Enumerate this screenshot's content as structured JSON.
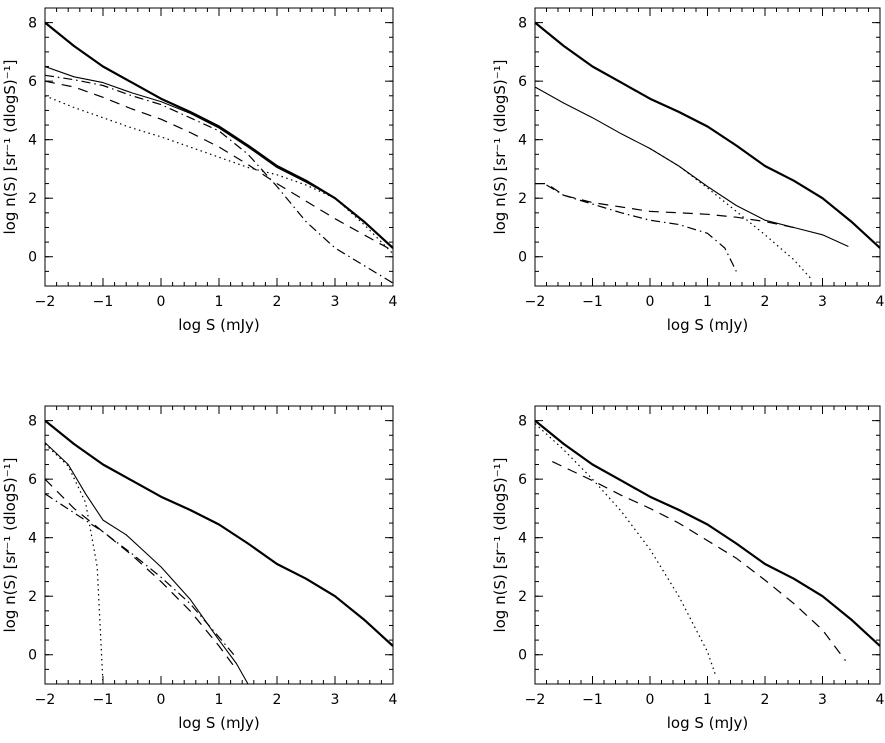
{
  "chart_data": [
    {
      "type": "line",
      "xlabel": "log S (mJy)",
      "ylabel": "log n(S) [sr⁻¹ (dlogS)⁻¹]",
      "xlim": [
        -2,
        4
      ],
      "ylim": [
        -1,
        8.5
      ],
      "xticks": [
        -2,
        -1,
        0,
        1,
        2,
        3,
        4
      ],
      "yticks": [
        0,
        2,
        4,
        6,
        8
      ],
      "grid": false,
      "series": [
        {
          "style": "solid-thick",
          "x": [
            -2,
            -1.5,
            -1,
            -0.5,
            0,
            0.5,
            1,
            1.5,
            2,
            2.5,
            3,
            3.5,
            4
          ],
          "y": [
            8.0,
            7.2,
            6.5,
            5.95,
            5.4,
            4.95,
            4.45,
            3.8,
            3.1,
            2.6,
            2.0,
            1.2,
            0.3
          ]
        },
        {
          "style": "solid-thin",
          "x": [
            -2,
            -1.5,
            -1,
            -0.5,
            0,
            0.5,
            1,
            1.5,
            2,
            2.5,
            3,
            3.5,
            4
          ],
          "y": [
            6.5,
            6.15,
            5.95,
            5.6,
            5.3,
            4.9,
            4.4,
            3.75,
            3.05,
            2.55,
            2.0,
            1.2,
            0.3
          ]
        },
        {
          "style": "dotted",
          "x": [
            -2,
            -1.5,
            -1,
            -0.5,
            0,
            0.5,
            1,
            1.5,
            2,
            2.5,
            3,
            3.5,
            4
          ],
          "y": [
            5.5,
            5.1,
            4.75,
            4.4,
            4.1,
            3.75,
            3.4,
            3.05,
            2.8,
            2.45,
            2.0,
            1.1,
            0.1
          ]
        },
        {
          "style": "dashed",
          "x": [
            -2,
            -1.5,
            -1,
            -0.5,
            0,
            0.5,
            1,
            1.5,
            2,
            2.5,
            3,
            3.5,
            4
          ],
          "y": [
            6.0,
            5.8,
            5.45,
            5.05,
            4.7,
            4.25,
            3.75,
            3.15,
            2.5,
            1.9,
            1.3,
            0.75,
            0.2
          ]
        },
        {
          "style": "dash-dot",
          "x": [
            -2,
            -1.5,
            -1,
            -0.5,
            0,
            0.5,
            1,
            1.5,
            2,
            2.5,
            3,
            3.5,
            4
          ],
          "y": [
            6.2,
            6.05,
            5.85,
            5.5,
            5.2,
            4.75,
            4.3,
            3.5,
            2.4,
            1.2,
            0.3,
            -0.3,
            -0.9
          ]
        }
      ]
    },
    {
      "type": "line",
      "xlabel": "log S (mJy)",
      "ylabel": "log n(S) [sr⁻¹ (dlogS)⁻¹]",
      "xlim": [
        -2,
        4
      ],
      "ylim": [
        -1,
        8.5
      ],
      "xticks": [
        -2,
        -1,
        0,
        1,
        2,
        3,
        4
      ],
      "yticks": [
        0,
        2,
        4,
        6,
        8
      ],
      "grid": false,
      "series": [
        {
          "style": "solid-thick",
          "x": [
            -2,
            -1.5,
            -1,
            -0.5,
            0,
            0.5,
            1,
            1.5,
            2,
            2.5,
            3,
            3.5,
            4
          ],
          "y": [
            8.0,
            7.2,
            6.5,
            5.95,
            5.4,
            4.95,
            4.45,
            3.8,
            3.1,
            2.6,
            2.0,
            1.2,
            0.3
          ]
        },
        {
          "style": "solid-thin",
          "x": [
            -2,
            -1.5,
            -1,
            -0.5,
            0,
            0.5,
            1,
            1.5,
            2,
            2.5,
            3,
            3.45
          ],
          "y": [
            5.8,
            5.25,
            4.75,
            4.2,
            3.7,
            3.1,
            2.4,
            1.75,
            1.25,
            1.0,
            0.75,
            0.35
          ]
        },
        {
          "style": "dotted",
          "x": [
            0,
            0.5,
            1,
            1.5,
            2,
            2.5,
            2.8
          ],
          "y": [
            3.7,
            3.1,
            2.35,
            1.55,
            0.75,
            -0.1,
            -0.75
          ]
        },
        {
          "style": "dashed",
          "x": [
            -2,
            -1.8,
            -1.5,
            -1,
            -0.5,
            0,
            0.5,
            1,
            1.5,
            2,
            2.5
          ],
          "y": [
            2.5,
            2.5,
            2.1,
            1.85,
            1.7,
            1.55,
            1.5,
            1.45,
            1.35,
            1.2,
            1.0
          ]
        },
        {
          "style": "dash-dot",
          "x": [
            -1.8,
            -1.5,
            -1,
            -0.5,
            0,
            0.5,
            1,
            1.3,
            1.5
          ],
          "y": [
            2.45,
            2.1,
            1.8,
            1.5,
            1.25,
            1.1,
            0.8,
            0.3,
            -0.5
          ]
        }
      ]
    },
    {
      "type": "line",
      "xlabel": "log S (mJy)",
      "ylabel": "log n(S) [sr⁻¹ (dlogS)⁻¹]",
      "xlim": [
        -2,
        4
      ],
      "ylim": [
        -1,
        8.5
      ],
      "xticks": [
        -2,
        -1,
        0,
        1,
        2,
        3,
        4
      ],
      "yticks": [
        0,
        2,
        4,
        6,
        8
      ],
      "grid": false,
      "series": [
        {
          "style": "solid-thick",
          "x": [
            -2,
            -1.5,
            -1,
            -0.5,
            0,
            0.5,
            1,
            1.5,
            2,
            2.5,
            3,
            3.5,
            4
          ],
          "y": [
            8.0,
            7.2,
            6.5,
            5.95,
            5.4,
            4.95,
            4.45,
            3.8,
            3.1,
            2.6,
            2.0,
            1.2,
            0.3
          ]
        },
        {
          "style": "solid-thin",
          "x": [
            -2,
            -1.6,
            -1.3,
            -1.0,
            -0.6,
            0,
            0.5,
            1,
            1.3,
            1.5
          ],
          "y": [
            7.25,
            6.5,
            5.5,
            4.6,
            4.1,
            3.0,
            1.9,
            0.5,
            -0.3,
            -1.0
          ]
        },
        {
          "style": "dotted",
          "x": [
            -2,
            -1.6,
            -1.3,
            -1.1,
            -1.0
          ],
          "y": [
            7.2,
            6.45,
            5.2,
            3.0,
            -1.0
          ]
        },
        {
          "style": "dashed",
          "x": [
            -2,
            -1.5,
            -1,
            -0.5,
            0,
            0.5,
            1,
            1.3
          ],
          "y": [
            6.0,
            5.0,
            4.2,
            3.4,
            2.5,
            1.5,
            0.3,
            -0.5
          ]
        },
        {
          "style": "dash-dot",
          "x": [
            -2,
            -1.5,
            -1,
            -0.5,
            0,
            0.5,
            1,
            1.3
          ],
          "y": [
            5.5,
            4.85,
            4.2,
            3.45,
            2.65,
            1.75,
            0.6,
            -0.1
          ]
        }
      ]
    },
    {
      "type": "line",
      "xlabel": "log S (mJy)",
      "ylabel": "log n(S) [sr⁻¹ (dlogS)⁻¹]",
      "xlim": [
        -2,
        4
      ],
      "ylim": [
        -1,
        8.5
      ],
      "xticks": [
        -2,
        -1,
        0,
        1,
        2,
        3,
        4
      ],
      "yticks": [
        0,
        2,
        4,
        6,
        8
      ],
      "grid": false,
      "series": [
        {
          "style": "solid-thick",
          "x": [
            -2,
            -1.5,
            -1,
            -0.5,
            0,
            0.5,
            1,
            1.5,
            2,
            2.5,
            3,
            3.5,
            4
          ],
          "y": [
            8.0,
            7.2,
            6.5,
            5.95,
            5.4,
            4.95,
            4.45,
            3.8,
            3.1,
            2.6,
            2.0,
            1.2,
            0.3
          ]
        },
        {
          "style": "dotted",
          "x": [
            -2,
            -1.5,
            -1,
            -0.5,
            0,
            0.5,
            1,
            1.15
          ],
          "y": [
            7.9,
            7.0,
            6.0,
            4.9,
            3.6,
            2.0,
            0.1,
            -0.75
          ]
        },
        {
          "style": "dashed",
          "x": [
            -1.7,
            -1,
            -0.5,
            0,
            0.5,
            1,
            1.5,
            2,
            2.5,
            3,
            3.4
          ],
          "y": [
            6.6,
            5.95,
            5.45,
            5.0,
            4.5,
            3.9,
            3.3,
            2.55,
            1.75,
            0.85,
            -0.2
          ]
        }
      ]
    }
  ]
}
